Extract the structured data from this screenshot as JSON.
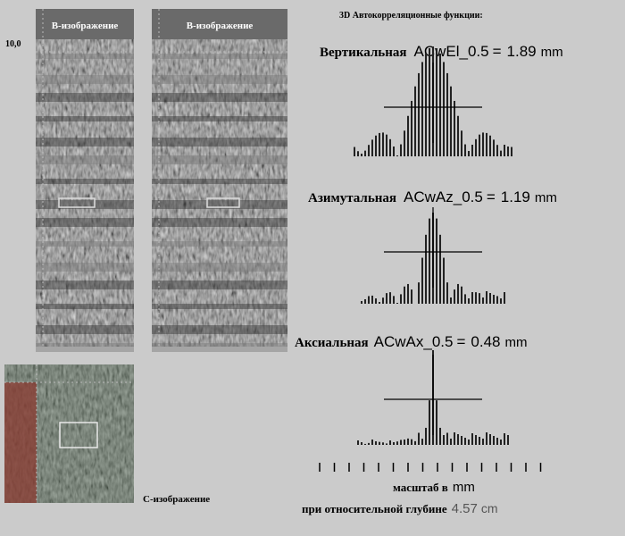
{
  "b_images": {
    "labels": [
      "B-изображение",
      "B-изображение"
    ],
    "side_label": "10,0"
  },
  "c_image": {
    "label": "C-изображение"
  },
  "acf": {
    "title": "3D Автокорреляционные функции:",
    "plots": [
      {
        "name": "Вертикальная",
        "param": "ACwEl_0.5",
        "eq": "=",
        "value": "1.89",
        "unit": "mm"
      },
      {
        "name": "Азимутальная",
        "param": "ACwAz_0.5",
        "eq": "=",
        "value": "1.19",
        "unit": "mm"
      },
      {
        "name": "Аксиальная",
        "param": "ACwAx_0.5",
        "eq": "=",
        "value": "0.48",
        "unit": "mm"
      }
    ],
    "scale_label": "масштаб в",
    "scale_unit": "mm",
    "depth_label": "при относительной глубине",
    "depth_value": "4.57",
    "depth_unit": "cm"
  }
}
